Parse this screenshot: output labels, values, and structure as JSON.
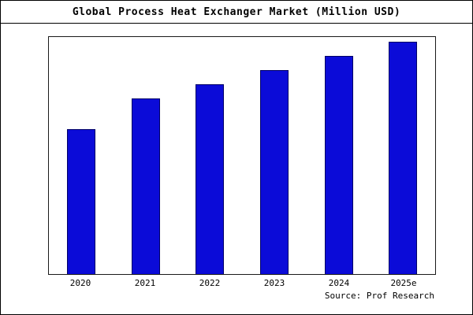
{
  "title": "Global Process Heat Exchanger Market (Million USD)",
  "source": "Source: Prof Research",
  "colors": {
    "bar_fill": "#0b0bd8",
    "bar_edge": "#000066",
    "frame_border": "#000000",
    "background": "#ffffff"
  },
  "chart_data": {
    "type": "bar",
    "title": "Global Process Heat Exchanger Market (Million USD)",
    "categories": [
      "2020",
      "2021",
      "2022",
      "2023",
      "2024",
      "2025e"
    ],
    "values": [
      61,
      74,
      80,
      86,
      92,
      98
    ],
    "xlabel": "",
    "ylabel": "",
    "ylim": [
      0,
      100
    ],
    "grid": false,
    "legend": false,
    "y_axis_tick_labels_visible": false,
    "annotation": "Source: Prof Research"
  }
}
